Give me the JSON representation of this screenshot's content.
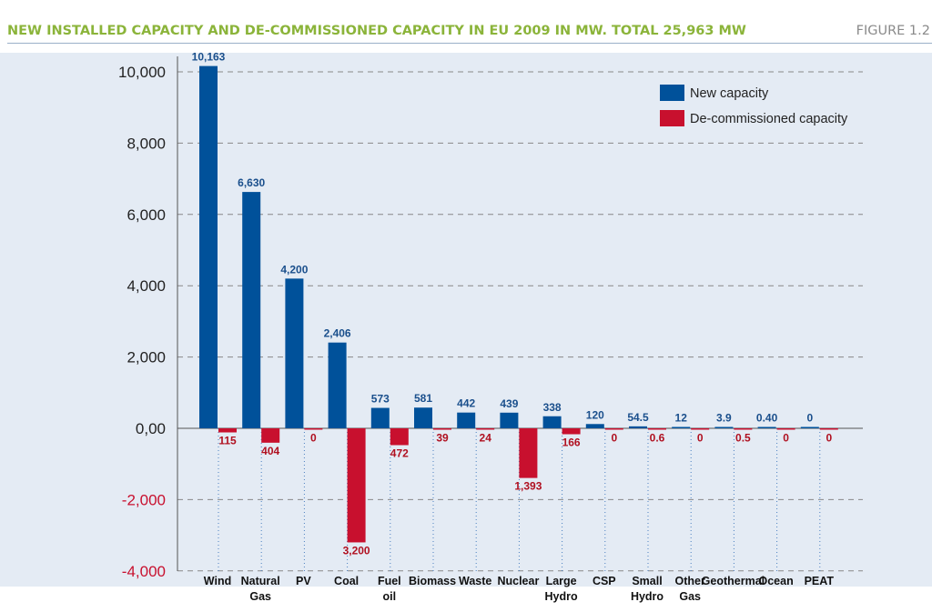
{
  "header": {
    "title": "NEW INSTALLED CAPACITY AND DE-COMMISSIONED CAPACITY IN EU 2009 IN MW. TOTAL 25,963 MW",
    "figure_label": "FIGURE 1.2"
  },
  "colors": {
    "new": "#00519a",
    "decom": "#c8102e",
    "axis_pos": "#222222",
    "axis_neg": "#c8102e",
    "label_new": "#1a4f8c",
    "label_decom": "#b01020",
    "grid": "#888888",
    "band": "#e4ebf4"
  },
  "chart_data": {
    "type": "bar",
    "title": "New installed capacity and de-commissioned capacity in EU 2009 in MW",
    "xlabel": "",
    "ylabel": "",
    "ylim": [
      -4000,
      10000
    ],
    "yticks": [
      {
        "value": 10000,
        "label": "10,000"
      },
      {
        "value": 8000,
        "label": "8,000"
      },
      {
        "value": 6000,
        "label": "6,000"
      },
      {
        "value": 4000,
        "label": "4,000"
      },
      {
        "value": 2000,
        "label": "2,000"
      },
      {
        "value": 0,
        "label": "0,00"
      },
      {
        "value": -2000,
        "label": "-2,000"
      },
      {
        "value": -4000,
        "label": "-4,000"
      }
    ],
    "legend_position": "top-right",
    "categories": [
      [
        "Wind"
      ],
      [
        "Natural",
        "Gas"
      ],
      [
        "PV"
      ],
      [
        "Coal"
      ],
      [
        "Fuel",
        "oil"
      ],
      [
        "Biomass"
      ],
      [
        "Waste"
      ],
      [
        "Nuclear"
      ],
      [
        "Large",
        "Hydro"
      ],
      [
        "CSP"
      ],
      [
        "Small",
        "Hydro"
      ],
      [
        "Other",
        "Gas"
      ],
      [
        "Geothermal"
      ],
      [
        "Ocean"
      ],
      [
        "PEAT"
      ]
    ],
    "series": [
      {
        "name": "New capacity",
        "values": [
          10163,
          6630,
          4200,
          2406,
          573,
          581,
          442,
          439,
          338,
          120,
          54.5,
          12,
          3.9,
          0.4,
          0
        ],
        "labels": [
          "10,163",
          "6,630",
          "4,200",
          "2,406",
          "573",
          "581",
          "442",
          "439",
          "338",
          "120",
          "54.5",
          "12",
          "3.9",
          "0.40",
          "0"
        ]
      },
      {
        "name": "De-commissioned capacity",
        "values": [
          -115,
          -404,
          0,
          -3200,
          -472,
          -39,
          -24,
          -1393,
          -166,
          0,
          -0.6,
          0,
          -0.5,
          0,
          0
        ],
        "labels": [
          "115",
          "404",
          "0",
          "3,200",
          "472",
          "39",
          "24",
          "1,393",
          "166",
          "0",
          "0.6",
          "0",
          "0.5",
          "0",
          "0"
        ]
      }
    ]
  }
}
